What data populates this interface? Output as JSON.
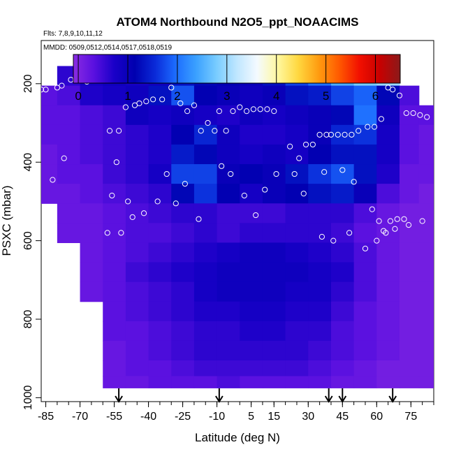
{
  "chart_data": {
    "type": "heatmap",
    "title": "ATOM4 Northbound N2O5_ppt_NOAACIMS",
    "flights_label": "Flts: 7,8,9,10,11,12",
    "dates_label": "MMDD: 0509,0512,0514,0517,0518,0519",
    "xlabel": "Latitude (deg N)",
    "ylabel": "PSXC (mbar)",
    "xlim": [
      -87,
      85
    ],
    "ylim": [
      1010,
      90
    ],
    "x_ticks": [
      -85,
      -70,
      -55,
      -40,
      -25,
      -10,
      5,
      15,
      30,
      45,
      60,
      75
    ],
    "x_tick_labels": [
      "-85",
      "-70",
      "-55",
      "-40",
      "-25",
      "-10",
      "5",
      "15",
      "30",
      "45",
      "60",
      "75"
    ],
    "y_ticks": [
      200,
      400,
      600,
      800,
      1000
    ],
    "y_tick_labels": [
      "200",
      "400",
      "600",
      "800",
      "1000"
    ],
    "colorbar": {
      "range": [
        -0.1,
        6.5
      ],
      "ticks": [
        0,
        1,
        2,
        3,
        4,
        5,
        6
      ],
      "tick_labels": [
        "0",
        "1",
        "2",
        "3",
        "4",
        "5",
        "6"
      ],
      "colors": [
        "#8a2be2",
        "#5a10e0",
        "#1a00c8",
        "#0000b0",
        "#0a2ad8",
        "#1c6cff",
        "#3aa0ff",
        "#78ccff",
        "#bfe6ff",
        "#f4faff",
        "#fff8a0",
        "#ffd840",
        "#ff9c10",
        "#ff5a00",
        "#f21000",
        "#c80000",
        "#8b1a1a"
      ]
    },
    "field": {
      "description": "N2O5 ppt curtain vs latitude and pressure",
      "x": [
        -85,
        -75,
        -65,
        -55,
        -45,
        -35,
        -25,
        -15,
        -5,
        5,
        15,
        25,
        35,
        45,
        55,
        65,
        75,
        82
      ],
      "y": [
        180,
        230,
        280,
        330,
        380,
        430,
        480,
        530,
        580,
        630,
        680,
        730,
        780,
        830,
        880,
        930,
        960
      ],
      "values": [
        [
          null,
          0.6,
          0.8,
          0.9,
          0.8,
          0.9,
          1.3,
          1.2,
          1.1,
          1.0,
          1.3,
          1.7,
          2.0,
          2.5,
          2.8,
          3.0,
          null,
          null
        ],
        [
          0.3,
          0.4,
          0.7,
          0.8,
          0.9,
          1.3,
          1.8,
          1.1,
          1.0,
          0.9,
          1.0,
          1.3,
          1.4,
          1.7,
          1.9,
          1.2,
          0.4,
          null
        ],
        [
          0.3,
          0.3,
          0.4,
          0.5,
          0.9,
          0.8,
          0.9,
          0.8,
          0.7,
          0.9,
          0.8,
          0.9,
          1.0,
          1.2,
          2.0,
          0.9,
          0.3,
          0.3
        ],
        [
          0.3,
          0.3,
          0.4,
          0.5,
          0.6,
          0.7,
          1.1,
          1.5,
          0.9,
          0.7,
          0.7,
          0.8,
          1.0,
          1.5,
          1.6,
          0.8,
          0.3,
          0.2
        ],
        [
          0.2,
          0.3,
          0.4,
          0.5,
          0.6,
          0.7,
          1.4,
          1.2,
          0.9,
          0.8,
          0.9,
          0.8,
          1.1,
          1.3,
          1.3,
          0.8,
          0.3,
          0.2
        ],
        [
          0.2,
          0.3,
          0.3,
          0.5,
          0.6,
          0.8,
          1.7,
          1.7,
          1.0,
          1.1,
          1.0,
          1.3,
          1.6,
          1.8,
          1.3,
          0.7,
          0.2,
          0.2
        ],
        [
          0.2,
          0.2,
          0.3,
          0.4,
          0.5,
          0.6,
          1.2,
          1.6,
          1.1,
          0.8,
          1.0,
          1.1,
          1.3,
          1.4,
          1.0,
          0.4,
          0.2,
          0.1
        ],
        [
          null,
          0.2,
          0.2,
          0.3,
          0.4,
          0.5,
          0.6,
          0.6,
          0.5,
          0.5,
          0.5,
          0.6,
          0.6,
          0.6,
          0.4,
          0.2,
          0.1,
          0.1
        ],
        [
          null,
          0.2,
          0.2,
          0.3,
          0.4,
          0.4,
          0.5,
          0.6,
          0.5,
          0.6,
          0.6,
          0.6,
          0.6,
          0.5,
          0.3,
          0.2,
          0.1,
          0.1
        ],
        [
          null,
          null,
          0.2,
          0.3,
          0.4,
          0.5,
          0.6,
          0.7,
          0.8,
          0.9,
          0.9,
          0.8,
          0.7,
          0.6,
          0.4,
          0.2,
          0.1,
          0.1
        ],
        [
          null,
          null,
          0.2,
          0.3,
          0.5,
          0.6,
          0.7,
          0.8,
          0.9,
          0.9,
          0.9,
          0.9,
          0.8,
          0.7,
          0.4,
          0.2,
          0.1,
          0.1
        ],
        [
          null,
          null,
          0.2,
          0.3,
          0.4,
          0.5,
          0.6,
          0.8,
          0.9,
          0.9,
          0.9,
          0.8,
          0.8,
          0.6,
          0.4,
          0.2,
          0.1,
          0.1
        ],
        [
          null,
          null,
          null,
          0.3,
          0.4,
          0.5,
          0.6,
          0.7,
          0.7,
          0.8,
          0.8,
          0.7,
          0.7,
          0.5,
          0.3,
          0.2,
          0.1,
          0.1
        ],
        [
          null,
          null,
          null,
          0.3,
          0.3,
          0.4,
          0.5,
          0.6,
          0.6,
          0.7,
          0.7,
          0.6,
          0.6,
          0.4,
          0.3,
          0.2,
          0.1,
          0.1
        ],
        [
          null,
          null,
          null,
          0.2,
          0.3,
          0.4,
          0.5,
          0.6,
          0.6,
          0.6,
          0.6,
          0.6,
          0.5,
          0.4,
          0.3,
          0.2,
          0.1,
          0.1
        ],
        [
          null,
          null,
          null,
          0.2,
          0.3,
          0.3,
          0.4,
          0.5,
          0.5,
          0.5,
          0.5,
          0.5,
          0.4,
          0.3,
          0.2,
          0.1,
          0.1,
          0.1
        ],
        [
          null,
          null,
          null,
          0.2,
          0.2,
          0.3,
          0.3,
          0.3,
          0.4,
          0.3,
          0.3,
          0.3,
          0.3,
          0.2,
          0.2,
          0.1,
          0.1,
          0.1
        ]
      ]
    },
    "samples": {
      "lat": [
        -87,
        -85,
        -80,
        -78,
        -74,
        -72,
        -69,
        -67,
        -63,
        -61,
        -57,
        -53,
        -50,
        -46,
        -44,
        -41,
        -38,
        -34,
        -30,
        -26,
        -23,
        -20,
        -17,
        -14,
        -11,
        -9,
        -6,
        -3,
        0,
        3,
        6,
        9,
        12,
        15,
        18,
        22,
        26,
        29,
        32,
        35,
        38,
        40,
        43,
        46,
        49,
        52,
        56,
        59,
        62,
        65,
        67,
        70,
        73,
        76,
        79,
        82,
        -82,
        -77,
        -56,
        -54,
        -49,
        -36,
        -28,
        -24,
        2,
        11,
        24,
        37,
        45,
        50,
        58,
        61,
        63,
        66,
        69,
        72,
        -58,
        -52,
        -47,
        -42,
        -32,
        -18,
        -8,
        -4,
        7,
        16,
        28,
        36,
        41,
        48,
        55,
        60,
        64,
        68,
        74,
        80
      ],
      "psxc": [
        215,
        215,
        210,
        205,
        190,
        190,
        190,
        195,
        190,
        190,
        320,
        320,
        260,
        255,
        250,
        245,
        240,
        240,
        210,
        250,
        270,
        255,
        320,
        300,
        320,
        270,
        320,
        270,
        260,
        270,
        265,
        265,
        265,
        270,
        185,
        360,
        390,
        355,
        355,
        330,
        330,
        330,
        330,
        330,
        330,
        320,
        310,
        310,
        290,
        210,
        215,
        230,
        275,
        275,
        280,
        285,
        445,
        390,
        485,
        400,
        500,
        500,
        505,
        455,
        485,
        470,
        430,
        425,
        420,
        450,
        520,
        550,
        575,
        550,
        545,
        545,
        580,
        580,
        540,
        530,
        430,
        545,
        410,
        430,
        535,
        430,
        480,
        590,
        600,
        580,
        620,
        600,
        580,
        570,
        560,
        550
      ],
      "marker": "open-circle"
    },
    "arrows_lat": [
      -53,
      -9,
      39,
      45,
      67
    ]
  }
}
